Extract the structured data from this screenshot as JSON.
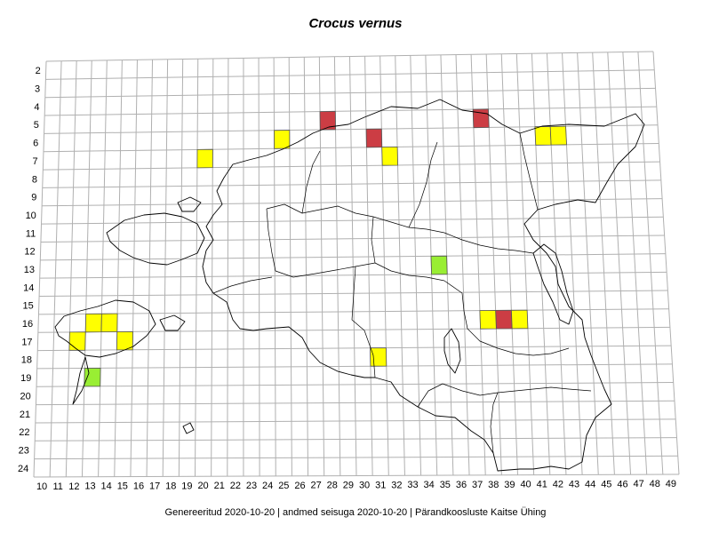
{
  "title": "Crocus vernus",
  "footer": "Genereeritud 2020-10-20  |  andmed seisuga 2020-10-20  |  Pärandkoosluste Kaitse Ühing",
  "grid": {
    "rows": [
      2,
      3,
      4,
      5,
      6,
      7,
      8,
      9,
      10,
      11,
      12,
      13,
      14,
      15,
      16,
      17,
      18,
      19,
      20,
      21,
      22,
      23,
      24
    ],
    "cols": [
      10,
      11,
      12,
      13,
      14,
      15,
      16,
      17,
      18,
      19,
      20,
      21,
      22,
      23,
      24,
      25,
      26,
      27,
      28,
      29,
      30,
      31,
      32,
      33,
      34,
      35,
      36,
      37,
      38,
      39,
      40,
      41,
      42,
      43,
      44,
      45,
      46,
      47,
      48,
      49
    ],
    "line_color": "#b0b0b0"
  },
  "legend_colors": {
    "red": "#cc3d44",
    "yellow": "#ffff00",
    "green": "#99ee33"
  },
  "cells": [
    {
      "col": 28,
      "row": 5,
      "color": "red"
    },
    {
      "col": 38,
      "row": 5,
      "color": "red"
    },
    {
      "col": 31,
      "row": 6,
      "color": "red"
    },
    {
      "col": 39,
      "row": 16,
      "color": "red"
    },
    {
      "col": 25,
      "row": 6,
      "color": "yellow"
    },
    {
      "col": 20,
      "row": 7,
      "color": "yellow"
    },
    {
      "col": 32,
      "row": 7,
      "color": "yellow"
    },
    {
      "col": 42,
      "row": 6,
      "color": "yellow"
    },
    {
      "col": 43,
      "row": 6,
      "color": "yellow"
    },
    {
      "col": 13,
      "row": 16,
      "color": "yellow"
    },
    {
      "col": 14,
      "row": 16,
      "color": "yellow"
    },
    {
      "col": 12,
      "row": 17,
      "color": "yellow"
    },
    {
      "col": 15,
      "row": 17,
      "color": "yellow"
    },
    {
      "col": 38,
      "row": 16,
      "color": "yellow"
    },
    {
      "col": 40,
      "row": 16,
      "color": "yellow"
    },
    {
      "col": 31,
      "row": 18,
      "color": "yellow"
    },
    {
      "col": 35,
      "row": 13,
      "color": "green"
    },
    {
      "col": 13,
      "row": 19,
      "color": "green"
    }
  ]
}
